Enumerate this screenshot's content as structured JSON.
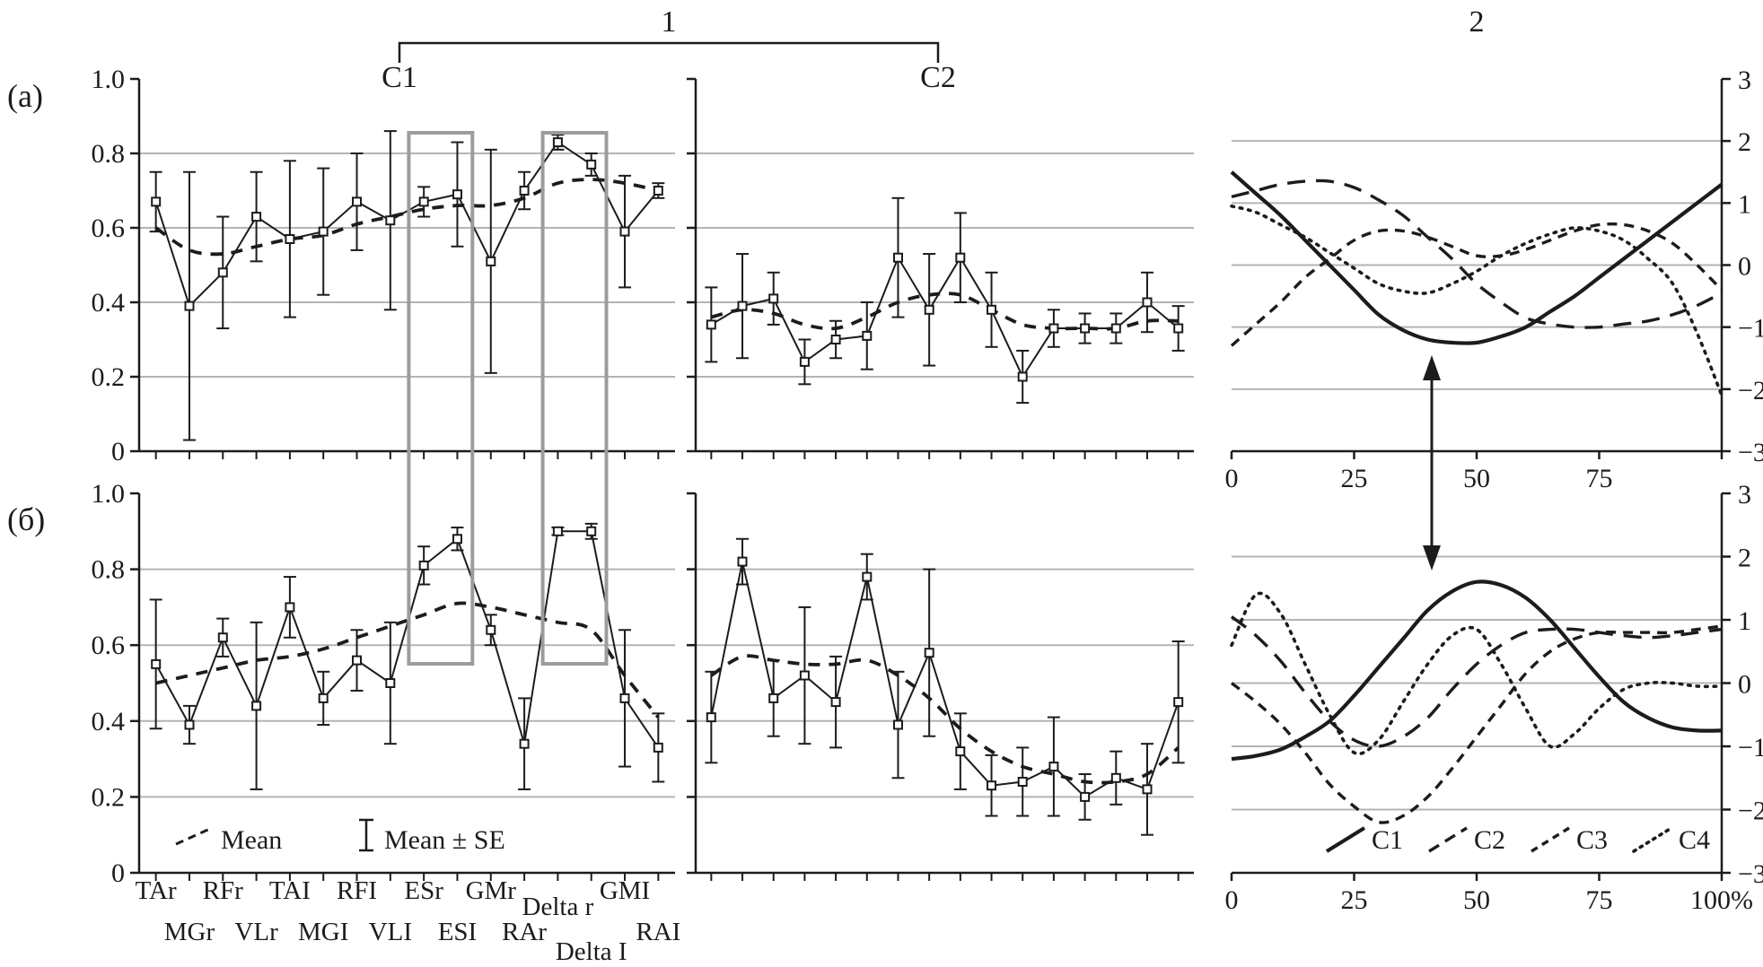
{
  "figure": {
    "bracket_group_label": "1",
    "right_group_label": "2",
    "row_a_label": "(a)",
    "row_b_label": "(б)",
    "cluster1_label": "C1",
    "cluster2_label": "C2"
  },
  "colors": {
    "text": "#1c1c1c",
    "axis": "#1c1c1c",
    "grid": "#b4b4b4",
    "highlight_box": "#9c9c9c",
    "marker_fill": "#ffffff"
  },
  "stats_legend": {
    "mean_label": "Mean",
    "se_label": "Mean ± SE"
  },
  "chart_data": [
    {
      "id": "a-left",
      "type": "line",
      "subtype": "mean-with-error-bars",
      "row": "(a)",
      "cluster": "C1",
      "title": "",
      "xlabel": "",
      "ylabel": "",
      "ylim": [
        0,
        1.0
      ],
      "grid_y": [
        0.2,
        0.4,
        0.6,
        0.8
      ],
      "yticks": [
        {
          "v": 0,
          "label": "0"
        },
        {
          "v": 0.2,
          "label": "0.2"
        },
        {
          "v": 0.4,
          "label": "0.4"
        },
        {
          "v": 0.6,
          "label": "0.6"
        },
        {
          "v": 0.8,
          "label": "0.8"
        },
        {
          "v": 1.0,
          "label": "1.0"
        }
      ],
      "show_y_labels": true,
      "show_x_labels": false,
      "show_stats_legend": false,
      "categories": [
        "TAr",
        "MGr",
        "RFr",
        "VLr",
        "TAI",
        "MGI",
        "RFI",
        "VLI",
        "ESr",
        "ESI",
        "GMr",
        "RAr",
        "Delta r",
        "Delta I",
        "GMI",
        "RAI"
      ],
      "values": [
        0.67,
        0.39,
        0.48,
        0.63,
        0.57,
        0.59,
        0.67,
        0.62,
        0.67,
        0.69,
        0.51,
        0.7,
        0.83,
        0.77,
        0.59,
        0.7
      ],
      "se": [
        0.08,
        0.36,
        0.15,
        0.12,
        0.21,
        0.17,
        0.13,
        0.24,
        0.04,
        0.14,
        0.3,
        0.05,
        0.02,
        0.03,
        0.15,
        0.02
      ],
      "mean_trend": [
        0.6,
        0.54,
        0.53,
        0.55,
        0.57,
        0.58,
        0.61,
        0.63,
        0.65,
        0.66,
        0.66,
        0.68,
        0.72,
        0.73,
        0.72,
        0.7
      ],
      "highlight_columns": [
        [
          "ESr",
          "ESI"
        ],
        [
          "Delta r",
          "Delta I"
        ]
      ]
    },
    {
      "id": "a-mid",
      "type": "line",
      "subtype": "mean-with-error-bars",
      "row": "(a)",
      "cluster": "C2",
      "ylim": [
        0,
        1.0
      ],
      "grid_y": [
        0.2,
        0.4,
        0.6,
        0.8
      ],
      "yticks": [
        {
          "v": 0,
          "label": "0"
        },
        {
          "v": 0.2,
          "label": "0.2"
        },
        {
          "v": 0.4,
          "label": "0.4"
        },
        {
          "v": 0.6,
          "label": "0.6"
        },
        {
          "v": 0.8,
          "label": "0.8"
        },
        {
          "v": 1.0,
          "label": "1.0"
        }
      ],
      "show_y_labels": false,
      "show_x_labels": false,
      "show_stats_legend": false,
      "categories": [
        "TAr",
        "MGr",
        "RFr",
        "VLr",
        "TAI",
        "MGI",
        "RFI",
        "VLI",
        "ESr",
        "ESI",
        "GMr",
        "RAr",
        "Delta r",
        "Delta I",
        "GMI",
        "RAI"
      ],
      "values": [
        0.34,
        0.39,
        0.41,
        0.24,
        0.3,
        0.31,
        0.52,
        0.38,
        0.52,
        0.38,
        0.2,
        0.33,
        0.33,
        0.33,
        0.4,
        0.33
      ],
      "se": [
        0.1,
        0.14,
        0.07,
        0.06,
        0.05,
        0.09,
        0.16,
        0.15,
        0.12,
        0.1,
        0.07,
        0.05,
        0.04,
        0.04,
        0.08,
        0.06
      ],
      "mean_trend": [
        0.36,
        0.38,
        0.37,
        0.34,
        0.33,
        0.36,
        0.4,
        0.42,
        0.42,
        0.38,
        0.34,
        0.33,
        0.33,
        0.33,
        0.35,
        0.35
      ]
    },
    {
      "id": "b-left",
      "type": "line",
      "subtype": "mean-with-error-bars",
      "row": "(б)",
      "cluster": "C1",
      "ylim": [
        0,
        1.0
      ],
      "grid_y": [
        0.2,
        0.4,
        0.6,
        0.8
      ],
      "yticks": [
        {
          "v": 0,
          "label": "0"
        },
        {
          "v": 0.2,
          "label": "0.2"
        },
        {
          "v": 0.4,
          "label": "0.4"
        },
        {
          "v": 0.6,
          "label": "0.6"
        },
        {
          "v": 0.8,
          "label": "0.8"
        },
        {
          "v": 1.0,
          "label": "1.0"
        }
      ],
      "show_y_labels": true,
      "show_x_labels": true,
      "show_stats_legend": true,
      "categories": [
        "TAr",
        "MGr",
        "RFr",
        "VLr",
        "TAI",
        "MGI",
        "RFI",
        "VLI",
        "ESr",
        "ESI",
        "GMr",
        "RAr",
        "Delta r",
        "Delta I",
        "GMI",
        "RAI"
      ],
      "values": [
        0.55,
        0.39,
        0.62,
        0.44,
        0.7,
        0.46,
        0.56,
        0.5,
        0.81,
        0.88,
        0.64,
        0.34,
        0.9,
        0.9,
        0.46,
        0.33
      ],
      "se": [
        0.17,
        0.05,
        0.05,
        0.22,
        0.08,
        0.07,
        0.08,
        0.16,
        0.05,
        0.03,
        0.04,
        0.12,
        0.01,
        0.02,
        0.18,
        0.09
      ],
      "mean_trend": [
        0.5,
        0.52,
        0.54,
        0.56,
        0.57,
        0.59,
        0.62,
        0.65,
        0.68,
        0.71,
        0.7,
        0.68,
        0.66,
        0.64,
        0.52,
        0.41
      ]
    },
    {
      "id": "b-mid",
      "type": "line",
      "subtype": "mean-with-error-bars",
      "row": "(б)",
      "cluster": "C2",
      "ylim": [
        0,
        1.0
      ],
      "grid_y": [
        0.2,
        0.4,
        0.6,
        0.8
      ],
      "yticks": [
        {
          "v": 0,
          "label": "0"
        },
        {
          "v": 0.2,
          "label": "0.2"
        },
        {
          "v": 0.4,
          "label": "0.4"
        },
        {
          "v": 0.6,
          "label": "0.6"
        },
        {
          "v": 0.8,
          "label": "0.8"
        },
        {
          "v": 1.0,
          "label": "1.0"
        }
      ],
      "show_y_labels": false,
      "show_x_labels": false,
      "show_stats_legend": false,
      "categories": [
        "TAr",
        "MGr",
        "RFr",
        "VLr",
        "TAI",
        "MGI",
        "RFI",
        "VLI",
        "ESr",
        "ESI",
        "GMr",
        "RAr",
        "Delta r",
        "Delta I",
        "GMI",
        "RAI"
      ],
      "values": [
        0.41,
        0.82,
        0.46,
        0.52,
        0.45,
        0.78,
        0.39,
        0.58,
        0.32,
        0.23,
        0.24,
        0.28,
        0.2,
        0.25,
        0.22,
        0.45
      ],
      "se": [
        0.12,
        0.06,
        0.1,
        0.18,
        0.12,
        0.06,
        0.14,
        0.22,
        0.1,
        0.08,
        0.09,
        0.13,
        0.06,
        0.07,
        0.12,
        0.16
      ],
      "mean_trend": [
        0.52,
        0.57,
        0.56,
        0.55,
        0.55,
        0.56,
        0.52,
        0.46,
        0.38,
        0.32,
        0.28,
        0.26,
        0.24,
        0.24,
        0.26,
        0.33
      ]
    },
    {
      "id": "a-right",
      "type": "line",
      "subtype": "smooth-curves",
      "row": "(a)",
      "xlim": [
        0,
        100
      ],
      "ylim": [
        -3,
        3
      ],
      "grid_y": [
        -2,
        -1,
        0,
        1,
        2
      ],
      "yticks": [
        {
          "v": -3,
          "label": "−3"
        },
        {
          "v": -2,
          "label": "−2"
        },
        {
          "v": -1,
          "label": "−1"
        },
        {
          "v": 0,
          "label": "0"
        },
        {
          "v": 1,
          "label": "1"
        },
        {
          "v": 2,
          "label": "2"
        },
        {
          "v": 3,
          "label": "3"
        }
      ],
      "xticks": [
        {
          "v": 0,
          "label": "0"
        },
        {
          "v": 25,
          "label": "25"
        },
        {
          "v": 50,
          "label": "50"
        },
        {
          "v": 75,
          "label": "75"
        },
        {
          "v": 100,
          "label": ""
        }
      ],
      "show_legend": false,
      "x": [
        0,
        5,
        10,
        15,
        20,
        25,
        30,
        35,
        40,
        45,
        50,
        55,
        60,
        65,
        70,
        75,
        80,
        85,
        90,
        95,
        100
      ],
      "series": [
        {
          "name": "C1",
          "style": "solid",
          "values": [
            1.5,
            1.15,
            0.8,
            0.4,
            0,
            -0.4,
            -0.8,
            -1.05,
            -1.2,
            -1.25,
            -1.25,
            -1.15,
            -1,
            -0.75,
            -0.5,
            -0.2,
            0.1,
            0.4,
            0.7,
            1,
            1.3
          ]
        },
        {
          "name": "C2",
          "style": "long-dash",
          "values": [
            1.1,
            1.2,
            1.3,
            1.35,
            1.35,
            1.25,
            1.05,
            0.8,
            0.45,
            0.1,
            -0.3,
            -0.6,
            -0.85,
            -0.95,
            -1,
            -1,
            -0.95,
            -0.9,
            -0.8,
            -0.65,
            -0.45
          ]
        },
        {
          "name": "C3",
          "style": "dash",
          "values": [
            -1.3,
            -0.95,
            -0.6,
            -0.2,
            0.1,
            0.4,
            0.55,
            0.55,
            0.45,
            0.3,
            0.15,
            0.15,
            0.25,
            0.4,
            0.55,
            0.65,
            0.65,
            0.55,
            0.35,
            0,
            -0.4
          ]
        },
        {
          "name": "C4",
          "style": "dot",
          "values": [
            0.95,
            0.85,
            0.65,
            0.45,
            0.2,
            -0.05,
            -0.3,
            -0.42,
            -0.45,
            -0.3,
            -0.1,
            0.15,
            0.35,
            0.5,
            0.6,
            0.55,
            0.4,
            0.1,
            -0.3,
            -1.1,
            -2.1
          ]
        }
      ]
    },
    {
      "id": "b-right",
      "type": "line",
      "subtype": "smooth-curves",
      "row": "(б)",
      "xlim": [
        0,
        100
      ],
      "ylim": [
        -3,
        3
      ],
      "grid_y": [
        -2,
        -1,
        0,
        1,
        2
      ],
      "yticks": [
        {
          "v": -3,
          "label": "−3"
        },
        {
          "v": -2,
          "label": "−2"
        },
        {
          "v": -1,
          "label": "−1"
        },
        {
          "v": 0,
          "label": "0"
        },
        {
          "v": 1,
          "label": "1"
        },
        {
          "v": 2,
          "label": "2"
        },
        {
          "v": 3,
          "label": "3"
        }
      ],
      "xticks": [
        {
          "v": 0,
          "label": "0"
        },
        {
          "v": 25,
          "label": "25"
        },
        {
          "v": 50,
          "label": "50"
        },
        {
          "v": 75,
          "label": "75"
        },
        {
          "v": 100,
          "label": "100%"
        }
      ],
      "show_legend": true,
      "x": [
        0,
        5,
        10,
        15,
        20,
        25,
        30,
        35,
        40,
        45,
        50,
        55,
        60,
        65,
        70,
        75,
        80,
        85,
        90,
        95,
        100
      ],
      "series": [
        {
          "name": "C1",
          "style": "solid",
          "values": [
            -1.2,
            -1.15,
            -1.05,
            -0.85,
            -0.6,
            -0.2,
            0.25,
            0.7,
            1.15,
            1.45,
            1.6,
            1.55,
            1.35,
            1,
            0.55,
            0.1,
            -0.3,
            -0.55,
            -0.7,
            -0.75,
            -0.75
          ]
        },
        {
          "name": "C2",
          "style": "long-dash",
          "values": [
            1.05,
            0.75,
            0.35,
            -0.15,
            -0.6,
            -0.9,
            -1,
            -0.85,
            -0.55,
            -0.1,
            0.3,
            0.6,
            0.8,
            0.85,
            0.85,
            0.8,
            0.75,
            0.72,
            0.75,
            0.8,
            0.85
          ]
        },
        {
          "name": "C3",
          "style": "dash",
          "values": [
            0,
            -0.3,
            -0.65,
            -1.1,
            -1.6,
            -1.95,
            -2.2,
            -2.1,
            -1.8,
            -1.35,
            -0.85,
            -0.35,
            0.15,
            0.5,
            0.7,
            0.8,
            0.8,
            0.8,
            0.8,
            0.85,
            0.9
          ]
        },
        {
          "name": "C4",
          "style": "dot",
          "values": [
            0.6,
            1.4,
            1.1,
            0.3,
            -0.5,
            -1.1,
            -0.9,
            -0.3,
            0.3,
            0.75,
            0.85,
            0.3,
            -0.4,
            -1,
            -0.8,
            -0.4,
            -0.1,
            0,
            0,
            -0.05,
            -0.05
          ]
        }
      ]
    }
  ]
}
